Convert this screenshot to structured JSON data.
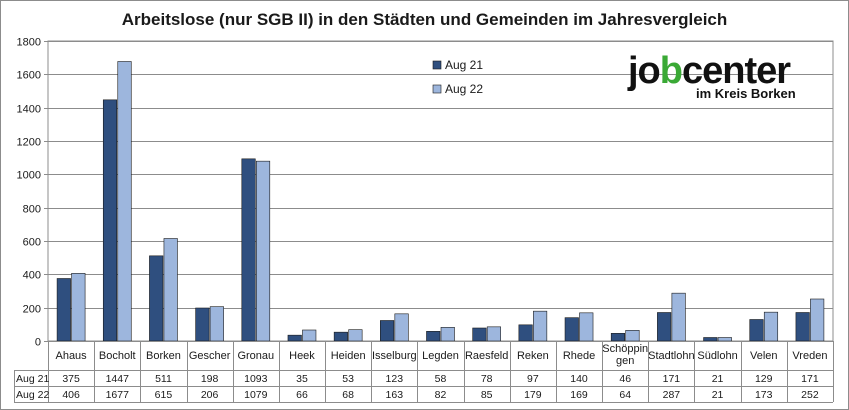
{
  "chart_data": {
    "type": "bar",
    "title": "Arbeitslose (nur SGB II) in den Städten und Gemeinden im Jahresvergleich",
    "categories": [
      "Ahaus",
      "Bocholt",
      "Borken",
      "Gescher",
      "Gronau",
      "Heek",
      "Heiden",
      "Isselburg",
      "Legden",
      "Raesfeld",
      "Reken",
      "Rhede",
      "Schöppin|gen",
      "Stadtlohn",
      "Südlohn",
      "Velen",
      "Vreden"
    ],
    "series": [
      {
        "name": "Aug 21",
        "color": "#2f4f7f",
        "values": [
          375,
          1447,
          511,
          198,
          1093,
          35,
          53,
          123,
          58,
          78,
          97,
          140,
          46,
          171,
          21,
          129,
          171
        ]
      },
      {
        "name": "Aug 22",
        "color": "#9db6dd",
        "values": [
          406,
          1677,
          615,
          206,
          1079,
          66,
          68,
          163,
          82,
          85,
          179,
          169,
          64,
          287,
          21,
          173,
          252
        ]
      }
    ],
    "ylim": [
      0,
      1800
    ],
    "yticks": [
      0,
      200,
      400,
      600,
      800,
      1000,
      1200,
      1400,
      1600,
      1800
    ],
    "gridlines": true,
    "legend": "top-center"
  },
  "logo": {
    "text_pre": "jo",
    "text_mark": "b",
    "text_post": "center",
    "subtitle": "im Kreis Borken"
  }
}
